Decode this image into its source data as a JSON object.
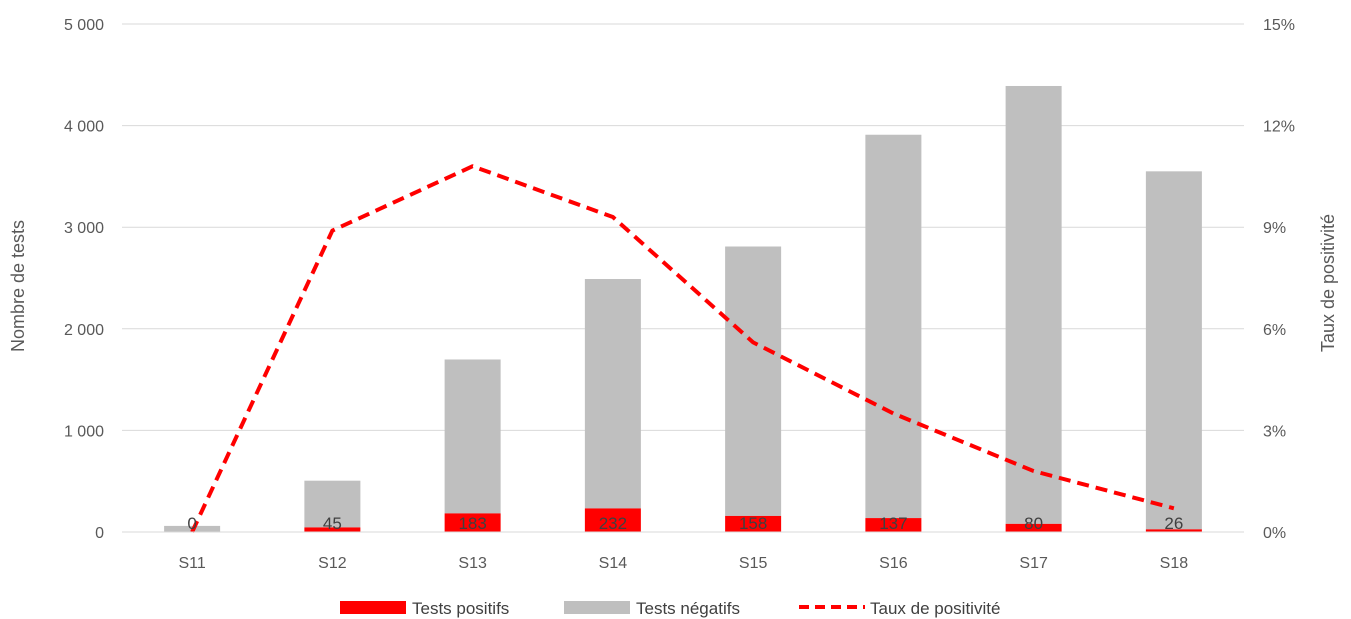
{
  "chart_data": {
    "type": "bar",
    "stacked": true,
    "categories": [
      "S11",
      "S12",
      "S13",
      "S14",
      "S15",
      "S16",
      "S17",
      "S18"
    ],
    "series": [
      {
        "name": "Tests positifs",
        "type": "bar",
        "axis": "left",
        "color": "#ff0000",
        "values": [
          0,
          45,
          183,
          232,
          158,
          137,
          80,
          26
        ],
        "data_labels": [
          "0",
          "45",
          "183",
          "232",
          "158",
          "137",
          "80",
          "26"
        ]
      },
      {
        "name": "Tests négatifs",
        "type": "bar",
        "axis": "left",
        "color": "#bfbfbf",
        "values": [
          60,
          460,
          1515,
          2258,
          2652,
          3773,
          4310,
          3524
        ]
      },
      {
        "name": "Taux de positivité",
        "type": "line",
        "axis": "right",
        "color": "#ff0000",
        "dashed": true,
        "values": [
          0,
          8.9,
          10.8,
          9.3,
          5.6,
          3.5,
          1.8,
          0.7
        ]
      }
    ],
    "ylabel": "Nombre de tests",
    "y2label": "Taux de positivité",
    "ylim": [
      0,
      5000
    ],
    "y2lim": [
      0,
      15
    ],
    "yticks": [
      "0",
      "1 000",
      "2 000",
      "3 000",
      "4 000",
      "5 000"
    ],
    "y2ticks": [
      "0%",
      "3%",
      "6%",
      "9%",
      "12%",
      "15%"
    ],
    "grid": true,
    "legend_position": "bottom"
  }
}
